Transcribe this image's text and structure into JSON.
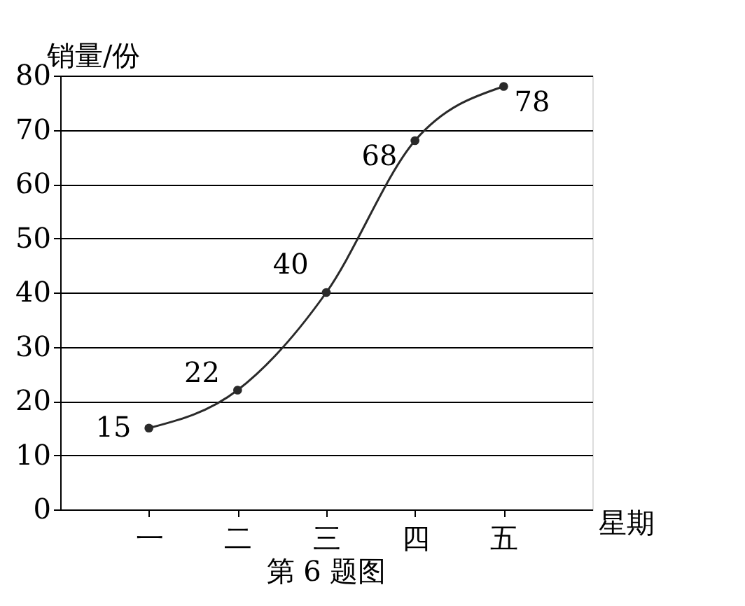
{
  "chart_data": {
    "type": "line",
    "categories": [
      "一",
      "二",
      "三",
      "四",
      "五"
    ],
    "values": [
      15,
      22,
      40,
      68,
      78
    ],
    "color": "#2a2a2a",
    "xlabel": "星期",
    "ylabel": "销量/份",
    "ylim": [
      0,
      80
    ],
    "yticks": [
      0,
      10,
      20,
      30,
      40,
      50,
      60,
      70,
      80
    ],
    "grid": "y",
    "marker": "circle",
    "line_style": "solid",
    "data_labels": true,
    "annotations": [
      "第 6 题图"
    ]
  }
}
